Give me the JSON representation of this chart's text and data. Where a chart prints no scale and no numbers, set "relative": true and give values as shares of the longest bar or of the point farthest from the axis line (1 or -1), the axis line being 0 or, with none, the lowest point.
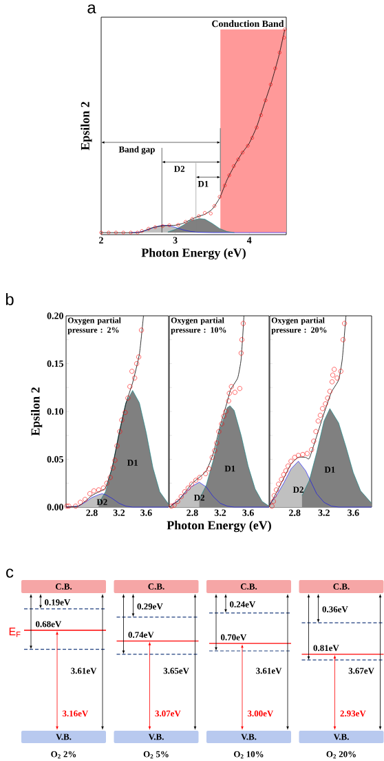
{
  "chart_data": [
    {
      "type": "scatter",
      "title": "a",
      "xlabel": "Photon Energy (eV)",
      "ylabel": "Epsilon 2",
      "relative": true,
      "xlim": [
        2,
        4.5
      ],
      "xticks": [
        2,
        3,
        4
      ],
      "series": [
        {
          "type": "area",
          "color": "#c0c0c0",
          "x": [
            2.4,
            2.5,
            2.6,
            2.7,
            2.8,
            2.85,
            2.9,
            3.0,
            3.1,
            3.2,
            3.3,
            3.5,
            4.5
          ],
          "values": [
            0,
            0.002,
            0.01,
            0.024,
            0.034,
            0.036,
            0.035,
            0.026,
            0.014,
            0.006,
            0.002,
            0,
            0
          ]
        },
        {
          "type": "area",
          "color": "#808080",
          "x": [
            2.9,
            3.0,
            3.1,
            3.2,
            3.33,
            3.4,
            3.5,
            3.6,
            3.7,
            3.8
          ],
          "values": [
            0.003,
            0.015,
            0.035,
            0.058,
            0.069,
            0.066,
            0.045,
            0.02,
            0.005,
            0
          ]
        },
        {
          "type": "scatter",
          "marker": "circle",
          "color": "#ff0000",
          "x": [
            2,
            2.1,
            2.2,
            2.3,
            2.4,
            2.49,
            2.55,
            2.64,
            2.73,
            2.83,
            2.92,
            3.04,
            3.14,
            3.23,
            3.32,
            3.4,
            3.48,
            3.53,
            3.6,
            3.67,
            3.73,
            3.79,
            3.85,
            3.91,
            3.98,
            4.04,
            4.1,
            4.16,
            4.22,
            4.29,
            4.35,
            4.41,
            4.47,
            4.48
          ],
          "values": [
            0,
            0,
            0,
            0,
            0,
            0,
            0.008,
            0.019,
            0.027,
            0.032,
            0.036,
            0.038,
            0.053,
            0.067,
            0.081,
            0.097,
            0.094,
            0.131,
            0.176,
            0.232,
            0.282,
            0.327,
            0.36,
            0.394,
            0.427,
            0.466,
            0.517,
            0.578,
            0.651,
            0.729,
            0.808,
            0.886,
            0.959,
            1.0
          ]
        },
        {
          "type": "line",
          "color": "#000000",
          "x": [
            2,
            2.5,
            2.6,
            2.7,
            2.8,
            2.9,
            3.0,
            3.1,
            3.2,
            3.3,
            3.4,
            3.5,
            3.6,
            3.7,
            3.8,
            3.9,
            4.0,
            4.1,
            4.2,
            4.3,
            4.4,
            4.48
          ],
          "values": [
            0,
            0,
            0.012,
            0.025,
            0.032,
            0.035,
            0.036,
            0.045,
            0.062,
            0.078,
            0.09,
            0.115,
            0.17,
            0.26,
            0.33,
            0.39,
            0.44,
            0.52,
            0.63,
            0.74,
            0.87,
            1.0
          ]
        }
      ],
      "bands": [
        {
          "axis": "x",
          "from": 3.61,
          "to": 4.5,
          "label": "Conduction Band",
          "color": "#ff9999"
        }
      ],
      "ref_lines": [
        {
          "axis": "x",
          "value": 2.82,
          "color": "#000000"
        },
        {
          "axis": "x",
          "value": 3.28,
          "color": "#808080"
        },
        {
          "axis": "x",
          "value": 3.61,
          "color": "#808080"
        }
      ],
      "annotations": [
        "Band gap",
        "D2",
        "D1"
      ]
    },
    {
      "type": "scatter",
      "title": "b",
      "ylabel": "Epsilon 2",
      "xlim": [
        2.42,
        3.93
      ],
      "ylim": [
        0,
        0.2
      ],
      "xticks": [
        2.8,
        3.2,
        3.6
      ],
      "yticks": [
        {
          "value": 0,
          "label": "0.00"
        },
        {
          "value": 0.025,
          "label": null
        },
        {
          "value": 0.05,
          "label": "0.05"
        },
        {
          "value": 0.075,
          "label": null
        },
        {
          "value": 0.1,
          "label": "0.10"
        },
        {
          "value": 0.125,
          "label": null
        },
        {
          "value": 0.15,
          "label": "0.15"
        },
        {
          "value": 0.175,
          "label": null
        },
        {
          "value": 0.2,
          "label": "0.20"
        }
      ],
      "series": [
        {
          "type": "area",
          "color": "#c0c0c0",
          "x": [
            2.42,
            2.6,
            2.7,
            2.8,
            2.9,
            2.95,
            3.0,
            3.1,
            3.2,
            3.3,
            3.4,
            3.93
          ],
          "values": [
            0,
            0.001,
            0.005,
            0.01,
            0.013,
            0.014,
            0.013,
            0.009,
            0.004,
            0.001,
            0,
            0
          ]
        },
        {
          "type": "area",
          "color": "#808080",
          "x": [
            2.9,
            3.0,
            3.1,
            3.2,
            3.3,
            3.4,
            3.5,
            3.6,
            3.7,
            3.8,
            3.93
          ],
          "values": [
            0.004,
            0.016,
            0.041,
            0.078,
            0.109,
            0.122,
            0.109,
            0.078,
            0.041,
            0.016,
            0.003
          ]
        },
        {
          "type": "scatter",
          "marker": "circle",
          "color": "#ff0000",
          "x": [
            2.43,
            2.46,
            2.56,
            2.63,
            2.7,
            2.77,
            2.83,
            2.9,
            2.97,
            3.02,
            3.07,
            3.11,
            3.14,
            3.17,
            3.21,
            3.24,
            3.29,
            3.33,
            3.36,
            3.39,
            3.43,
            3.46,
            3.49,
            3.53
          ],
          "values": [
            0.001,
            0.001,
            0.001,
            0.005,
            0.008,
            0.014,
            0.017,
            0.018,
            0.02,
            0.025,
            0.031,
            0.041,
            0.049,
            0.064,
            0.079,
            0.091,
            0.099,
            0.114,
            0.126,
            0.142,
            0.135,
            0.15,
            0.157,
            0.185
          ]
        },
        {
          "type": "line",
          "color": "#000000",
          "x": [
            2.42,
            2.6,
            2.7,
            2.8,
            2.9,
            3.0,
            3.1,
            3.2,
            3.3,
            3.4,
            3.5,
            3.56
          ],
          "values": [
            0,
            0.001,
            0.006,
            0.012,
            0.016,
            0.02,
            0.042,
            0.076,
            0.108,
            0.13,
            0.16,
            0.2
          ]
        }
      ],
      "annotations": [
        "Oxygen partial pressure : 2%",
        "D2",
        "D1"
      ]
    },
    {
      "type": "scatter",
      "xlabel": "Photon Energy (eV)",
      "xlim": [
        2.47,
        3.9
      ],
      "ylim": [
        0,
        0.2
      ],
      "tick_labels": "x",
      "xticks": [
        2.8,
        3.2,
        3.6
      ],
      "yticks": [
        0,
        0.025,
        0.05,
        0.075,
        0.1,
        0.125,
        0.15,
        0.175,
        0.2
      ],
      "series": [
        {
          "type": "area",
          "color": "#c0c0c0",
          "x": [
            2.5,
            2.6,
            2.7,
            2.8,
            2.9,
            3.0,
            3.1,
            3.2,
            3.3,
            3.4,
            3.9
          ],
          "values": [
            0.002,
            0.007,
            0.015,
            0.022,
            0.026,
            0.021,
            0.011,
            0.004,
            0.001,
            0,
            0
          ]
        },
        {
          "type": "area",
          "color": "#808080",
          "x": [
            2.9,
            3.0,
            3.1,
            3.2,
            3.3,
            3.34,
            3.4,
            3.5,
            3.6,
            3.7,
            3.8,
            3.9
          ],
          "values": [
            0.008,
            0.023,
            0.049,
            0.082,
            0.104,
            0.106,
            0.101,
            0.075,
            0.043,
            0.019,
            0.006,
            0.001
          ]
        },
        {
          "type": "scatter",
          "marker": "circle",
          "color": "#ff0000",
          "x": [
            2.5,
            2.54,
            2.59,
            2.64,
            2.69,
            2.74,
            2.79,
            2.85,
            2.905,
            2.99,
            3.04,
            3.085,
            3.12,
            3.15,
            3.18,
            3.22,
            3.25,
            3.28,
            3.32,
            3.33,
            3.36,
            3.41,
            3.48,
            3.5,
            3.51,
            3.53
          ],
          "values": [
            0.001,
            0.002,
            0.006,
            0.011,
            0.016,
            0.02,
            0.024,
            0.028,
            0.031,
            0.035,
            0.04,
            0.052,
            0.059,
            0.067,
            0.079,
            0.087,
            0.095,
            0.1,
            0.111,
            0.119,
            0.126,
            0.12,
            0.124,
            0.161,
            0.175,
            0.192
          ]
        },
        {
          "type": "line",
          "color": "#000000",
          "x": [
            2.47,
            2.6,
            2.7,
            2.8,
            2.9,
            3.0,
            3.1,
            3.2,
            3.3,
            3.35,
            3.45,
            3.5,
            3.54
          ],
          "values": [
            0,
            0.007,
            0.016,
            0.025,
            0.031,
            0.038,
            0.056,
            0.085,
            0.11,
            0.123,
            0.135,
            0.155,
            0.2
          ]
        }
      ],
      "annotations": [
        "Oxygen partial pressure : 10%",
        "D2",
        "D1"
      ]
    },
    {
      "type": "scatter",
      "xlim": [
        2.46,
        3.85
      ],
      "ylim": [
        0,
        0.2
      ],
      "tick_labels": "x",
      "xticks": [
        2.8,
        3.2,
        3.6
      ],
      "yticks": [
        0,
        0.025,
        0.05,
        0.075,
        0.1,
        0.125,
        0.15,
        0.175,
        0.2
      ],
      "series": [
        {
          "type": "area",
          "color": "#c0c0c0",
          "x": [
            2.46,
            2.55,
            2.65,
            2.75,
            2.85,
            2.95,
            3.0,
            3.1,
            3.2,
            3.3,
            3.4,
            3.85
          ],
          "values": [
            0.003,
            0.012,
            0.025,
            0.04,
            0.048,
            0.038,
            0.03,
            0.014,
            0.005,
            0.001,
            0,
            0
          ]
        },
        {
          "type": "area",
          "color": "#808080",
          "x": [
            2.9,
            3.0,
            3.1,
            3.2,
            3.28,
            3.4,
            3.5,
            3.6,
            3.7,
            3.85
          ],
          "values": [
            0.012,
            0.028,
            0.057,
            0.09,
            0.103,
            0.088,
            0.063,
            0.036,
            0.017,
            0.004
          ]
        },
        {
          "type": "scatter",
          "marker": "circle",
          "color": "#ff0000",
          "x": [
            2.49,
            2.51,
            2.52,
            2.55,
            2.58,
            2.62,
            2.65,
            2.68,
            2.71,
            2.75,
            2.8,
            2.85,
            2.91,
            2.97,
            3.03,
            3.06,
            3.09,
            3.12,
            3.15,
            3.18,
            3.22,
            3.25,
            3.28,
            3.31,
            3.32,
            3.34,
            3.38,
            3.43,
            3.46,
            3.48
          ],
          "values": [
            0.001,
            0.006,
            0.012,
            0.018,
            0.024,
            0.029,
            0.034,
            0.038,
            0.043,
            0.048,
            0.052,
            0.054,
            0.055,
            0.056,
            0.06,
            0.069,
            0.079,
            0.09,
            0.096,
            0.103,
            0.108,
            0.114,
            0.121,
            0.131,
            0.138,
            0.144,
            0.135,
            0.142,
            0.175,
            0.192
          ]
        },
        {
          "type": "line",
          "color": "#000000",
          "x": [
            2.46,
            2.55,
            2.65,
            2.75,
            2.85,
            2.95,
            3.0,
            3.1,
            3.2,
            3.3,
            3.4,
            3.45,
            3.5
          ],
          "values": [
            0.002,
            0.015,
            0.03,
            0.045,
            0.052,
            0.052,
            0.051,
            0.074,
            0.098,
            0.12,
            0.133,
            0.155,
            0.2
          ]
        }
      ],
      "annotations": [
        "Oxygen partial pressure : 20%",
        "D2",
        "D1"
      ]
    },
    {
      "type": "other",
      "title": "c",
      "categories": [
        "O$_{2}$ 2%",
        "O$_{2}$ 5%",
        "O$_{2}$ 10%",
        "O$_{2}$ 20%"
      ],
      "series": [
        {
          "color": "#000000",
          "values": [
            0.19,
            0.29,
            0.24,
            0.36
          ],
          "value_labels": [
            "0.19eV",
            "0.29eV",
            "0.24eV",
            "0.36eV"
          ]
        },
        {
          "color": "#000000",
          "values": [
            0.68,
            0.74,
            0.7,
            0.81
          ],
          "value_labels": [
            "0.68eV",
            "0.74eV",
            "0.70eV",
            "0.81eV"
          ]
        },
        {
          "color": "#000000",
          "values": [
            3.61,
            3.65,
            3.61,
            3.67
          ],
          "value_labels": [
            "3.61eV",
            "3.65eV",
            "3.61eV",
            "3.67eV"
          ]
        },
        {
          "color": "#ff0000",
          "values": [
            3.16,
            3.07,
            3.0,
            2.93
          ],
          "value_labels": [
            "3.16eV",
            "3.07eV",
            "3.00eV",
            "2.93eV"
          ]
        }
      ],
      "annotations": [
        "C.B.",
        "V.B.",
        "E$_{F}$"
      ]
    }
  ]
}
